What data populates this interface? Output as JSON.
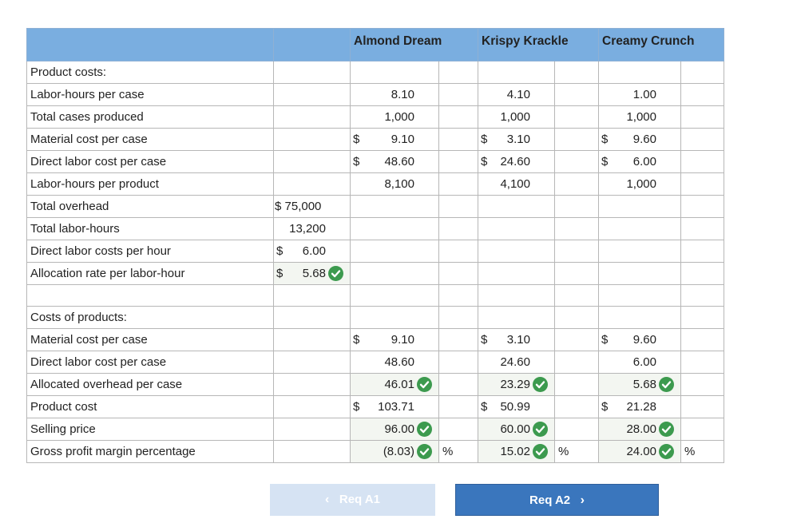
{
  "columns": [
    "Almond Dream",
    "Krispy Krackle",
    "Creamy Crunch"
  ],
  "sections": {
    "product_costs": "Product costs:",
    "costs_of_products": "Costs of products:"
  },
  "rows": {
    "labor_hours_per_case": {
      "label": "Labor-hours per case",
      "a": "8.10",
      "b": "4.10",
      "c": "1.00"
    },
    "total_cases": {
      "label": "Total cases produced",
      "a": "1,000",
      "b": "1,000",
      "c": "1,000"
    },
    "material_cost": {
      "label": "Material cost per case",
      "a": "9.10",
      "b": "3.10",
      "c": "9.60"
    },
    "direct_labor_cost": {
      "label": "Direct labor cost per case",
      "a": "48.60",
      "b": "24.60",
      "c": "6.00"
    },
    "labor_hours_per_product": {
      "label": "Labor-hours per product",
      "a": "8,100",
      "b": "4,100",
      "c": "1,000"
    },
    "total_overhead": {
      "label": "Total overhead",
      "value": "$ 75,000"
    },
    "total_labor_hours": {
      "label": "Total labor-hours",
      "value": "13,200"
    },
    "dl_cost_per_hour": {
      "label": "Direct labor costs per hour",
      "value": "6.00"
    },
    "allocation_rate": {
      "label": "Allocation rate per labor-hour",
      "value": "5.68"
    },
    "cp_material": {
      "label": "Material cost per case",
      "a": "9.10",
      "b": "3.10",
      "c": "9.60"
    },
    "cp_direct_labor": {
      "label": "Direct labor cost per case",
      "a": "48.60",
      "b": "24.60",
      "c": "6.00"
    },
    "cp_overhead": {
      "label": "Allocated overhead per case",
      "a": "46.01",
      "b": "23.29",
      "c": "5.68"
    },
    "product_cost": {
      "label": "Product cost",
      "a": "103.71",
      "b": "50.99",
      "c": "21.28"
    },
    "selling_price": {
      "label": "Selling price",
      "a": "96.00",
      "b": "60.00",
      "c": "28.00"
    },
    "gross_margin": {
      "label": "Gross profit margin percentage",
      "a": "(8.03)",
      "b": "15.02",
      "c": "24.00"
    }
  },
  "symbols": {
    "dollar": "$",
    "percent": "%"
  },
  "buttons": {
    "prev": "Req A1",
    "next": "Req A2",
    "prev_arrow": "‹",
    "next_arrow": "›"
  },
  "colors": {
    "header": "#7aaee0",
    "check": "#3c9a4e",
    "next_button": "#3a76bd",
    "prev_button": "#d6e3f3"
  },
  "icons": {
    "correct": "check-circle-icon"
  }
}
